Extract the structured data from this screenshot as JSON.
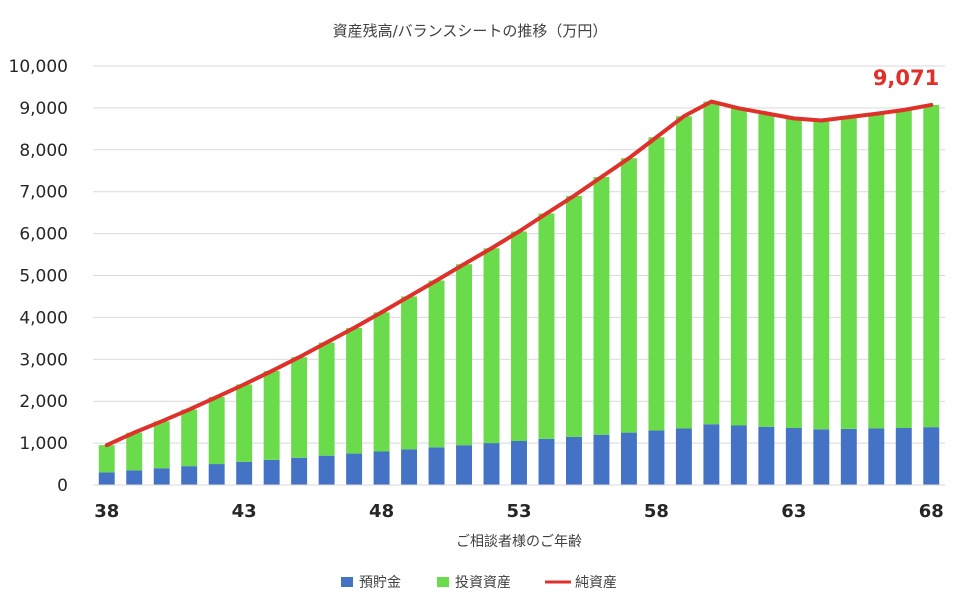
{
  "chart_data": {
    "type": "bar",
    "stacked": true,
    "title": "資産残高/バランスシートの推移（万円）",
    "xlabel": "ご相談者様のご年齢",
    "ylabel": "",
    "ylim": [
      0,
      10000
    ],
    "yticks": [
      "0",
      "1,000",
      "2,000",
      "3,000",
      "4,000",
      "5,000",
      "6,000",
      "7,000",
      "8,000",
      "9,000",
      "10,000"
    ],
    "ytick_values": [
      0,
      1000,
      2000,
      3000,
      4000,
      5000,
      6000,
      7000,
      8000,
      9000,
      10000
    ],
    "x": [
      38,
      39,
      40,
      41,
      42,
      43,
      44,
      45,
      46,
      47,
      48,
      49,
      50,
      51,
      52,
      53,
      54,
      55,
      56,
      57,
      58,
      59,
      60,
      61,
      62,
      63,
      64,
      65,
      66,
      67,
      68
    ],
    "xticks": [
      "38",
      "43",
      "48",
      "53",
      "58",
      "63",
      "68"
    ],
    "xtick_values": [
      38,
      43,
      48,
      53,
      58,
      63,
      68
    ],
    "grid": true,
    "legend_position": "bottom",
    "series": [
      {
        "name": "預貯金",
        "kind": "bar",
        "color": "#4472C4",
        "values": [
          300,
          350,
          400,
          450,
          500,
          550,
          600,
          650,
          700,
          750,
          800,
          850,
          900,
          950,
          1000,
          1050,
          1100,
          1150,
          1200,
          1250,
          1300,
          1350,
          1450,
          1420,
          1390,
          1360,
          1330,
          1340,
          1350,
          1360,
          1380
        ]
      },
      {
        "name": "投資資産",
        "kind": "bar",
        "color": "#6ADB4A",
        "values": [
          650,
          900,
          1120,
          1350,
          1600,
          1850,
          2120,
          2400,
          2700,
          3000,
          3320,
          3650,
          3980,
          4320,
          4650,
          5000,
          5380,
          5750,
          6150,
          6550,
          7000,
          7450,
          7700,
          7570,
          7480,
          7390,
          7370,
          7440,
          7510,
          7590,
          7690
        ]
      },
      {
        "name": "純資産",
        "kind": "line",
        "color": "#E0302A",
        "values": [
          950,
          1250,
          1520,
          1800,
          2100,
          2400,
          2720,
          3050,
          3400,
          3750,
          4120,
          4500,
          4880,
          5270,
          5650,
          6050,
          6480,
          6900,
          7350,
          7800,
          8300,
          8800,
          9150,
          8990,
          8870,
          8750,
          8700,
          8780,
          8860,
          8950,
          9071
        ]
      }
    ],
    "annotation": {
      "text": "9,071",
      "color": "#E0302A"
    }
  }
}
